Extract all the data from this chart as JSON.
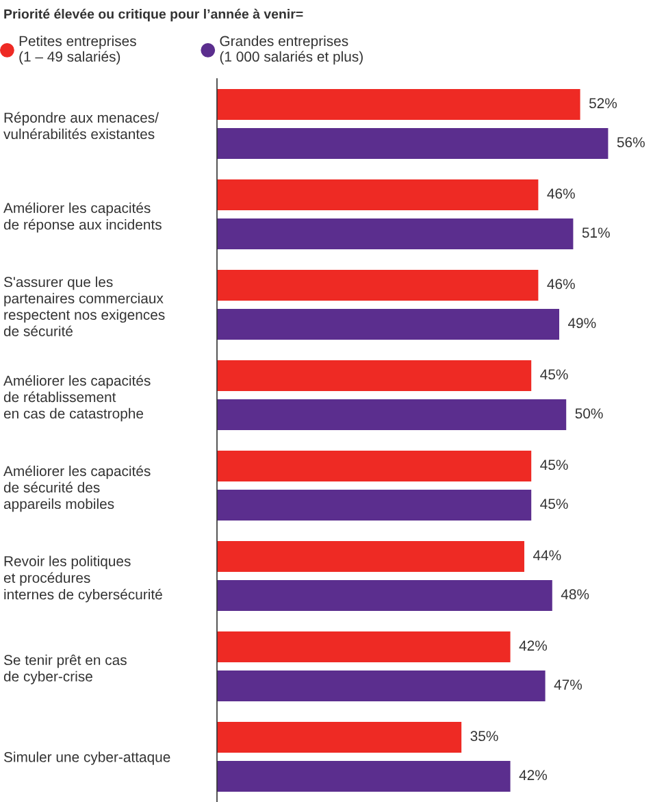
{
  "chart_data": {
    "type": "bar",
    "orientation": "horizontal",
    "title": "Priorité élevée ou critique pour l’année à venir=",
    "categories": [
      "Répondre aux menaces/\nvulnérabilités existantes",
      "Améliorer les capacités\nde réponse aux incidents",
      "S'assurer que les\npartenaires commerciaux\nrespectent nos exigences\nde sécurité",
      "Améliorer les capacités\nde rétablissement\nen cas de catastrophe",
      "Améliorer les capacités\nde sécurité des\nappareils mobiles",
      "Revoir les politiques\net procédures\ninternes de cybersécurité",
      "Se tenir prêt en cas\nde cyber-crise",
      "Simuler une cyber-attaque"
    ],
    "series": [
      {
        "name": "Petites entreprises\n(1 – 49 salariés)",
        "color": "#ee2a24",
        "values": [
          52,
          46,
          46,
          45,
          45,
          44,
          42,
          35
        ],
        "value_labels": [
          "52%",
          "46%",
          "46%",
          "45%",
          "45%",
          "44%",
          "42%",
          "35%"
        ]
      },
      {
        "name": "Grandes entreprises\n(1 000 salariés et plus)",
        "color": "#5b2e8e",
        "values": [
          56,
          51,
          49,
          50,
          45,
          48,
          47,
          42
        ],
        "value_labels": [
          "56%",
          "51%",
          "49%",
          "50%",
          "45%",
          "48%",
          "47%",
          "42%"
        ]
      }
    ],
    "legend": "top left",
    "grid": false,
    "marker": "circle"
  }
}
